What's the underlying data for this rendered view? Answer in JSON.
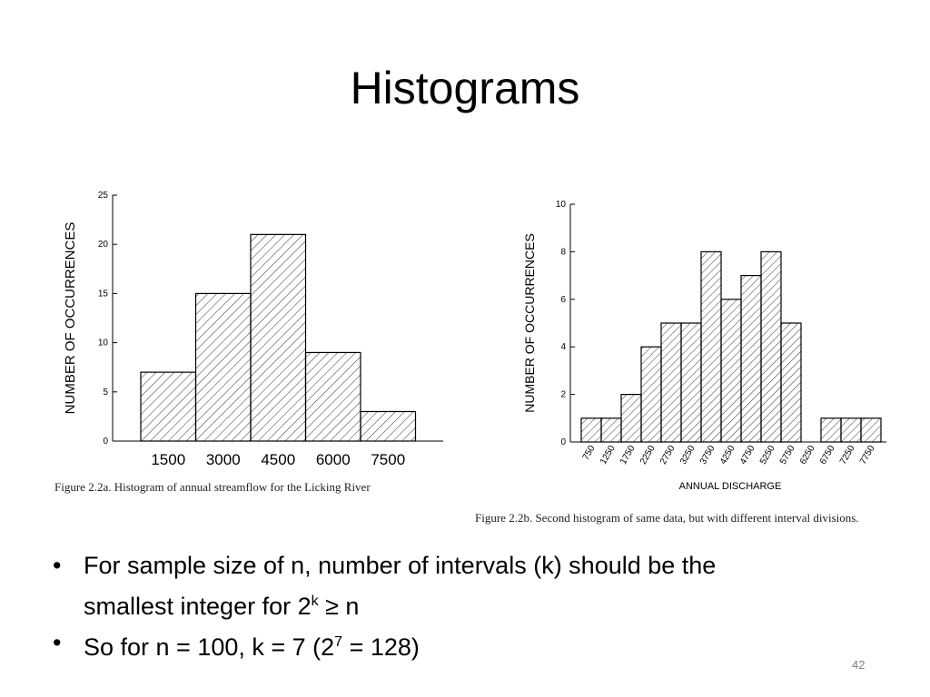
{
  "slide": {
    "title": "Histograms",
    "page_number": "42"
  },
  "captions": {
    "fig_a": "Figure 2.2a.  Histogram of annual streamflow for the Licking River",
    "fig_b": "Figure 2.2b.  Second histogram of same data, but with different interval divisions."
  },
  "bullets": [
    {
      "line1": "For sample size of n, number of intervals (k) should be the",
      "line2_prefix": "smallest integer for 2",
      "line2_sup": "k",
      "line2_suffix": " ≥ n"
    },
    {
      "prefix": "So for n = 100, k = 7 (2",
      "sup": "7",
      "suffix": " = 128)"
    }
  ],
  "chart_data": [
    {
      "type": "bar",
      "ylabel": "NUMBER OF OCCURRENCES",
      "xlabel": "",
      "categories": [
        "1500",
        "3000",
        "4500",
        "6000",
        "7500"
      ],
      "values": [
        7,
        15,
        21,
        9,
        3
      ],
      "ylim": [
        0,
        25
      ],
      "yticks": [
        0,
        5,
        10,
        15,
        20,
        25
      ],
      "bar_fill": "diagonal-hatch",
      "grid": false
    },
    {
      "type": "bar",
      "ylabel": "NUMBER OF OCCURRENCES",
      "xlabel": "ANNUAL DISCHARGE",
      "categories": [
        "750",
        "1250",
        "1750",
        "2250",
        "2750",
        "3250",
        "3750",
        "4250",
        "4750",
        "5250",
        "5750",
        "6250",
        "6750",
        "7250",
        "7750"
      ],
      "values": [
        1,
        1,
        2,
        4,
        5,
        5,
        8,
        6,
        7,
        8,
        5,
        0,
        1,
        1,
        1
      ],
      "ylim": [
        0,
        10
      ],
      "yticks": [
        0,
        2,
        4,
        6,
        8,
        10
      ],
      "bar_fill": "diagonal-hatch",
      "grid": false
    }
  ]
}
